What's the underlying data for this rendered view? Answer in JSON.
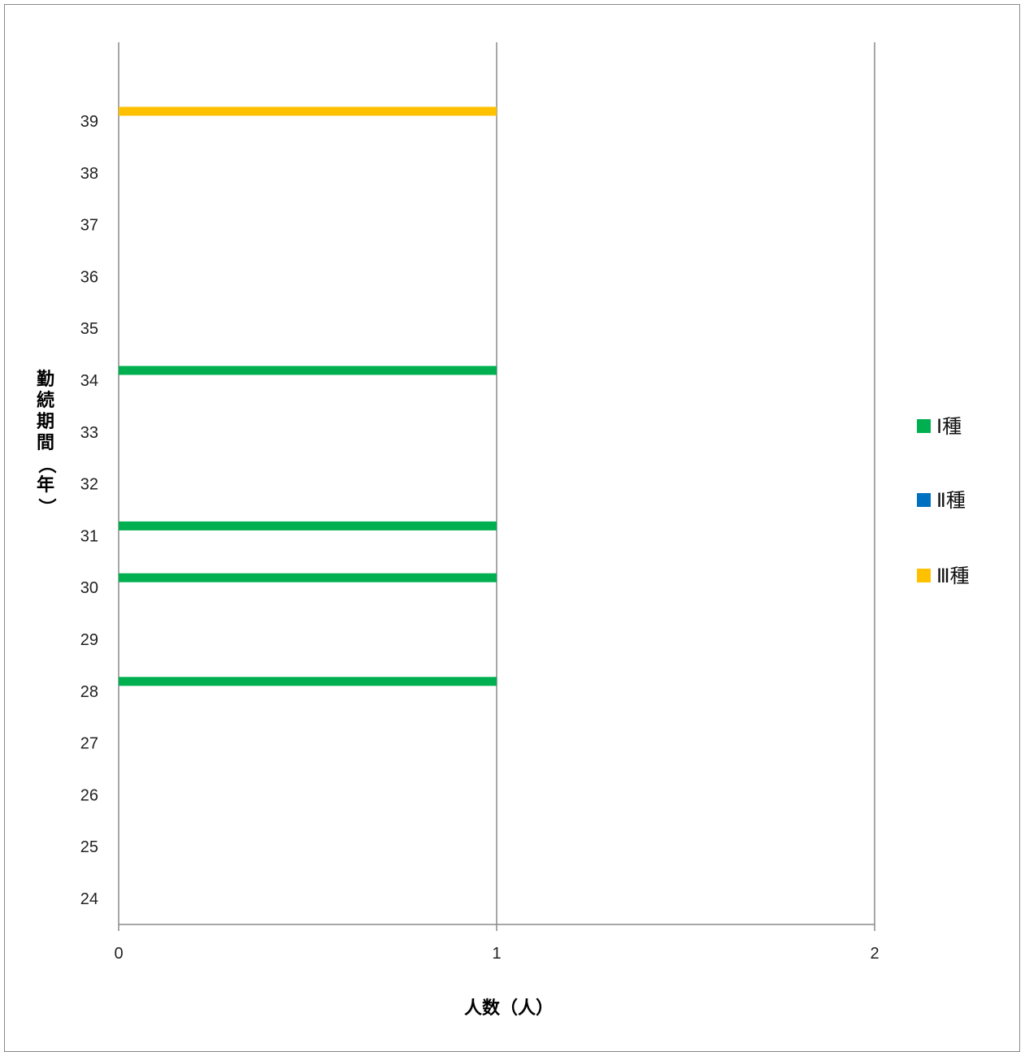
{
  "chart_data": {
    "type": "bar",
    "orientation": "horizontal",
    "title": "",
    "xlabel": "人数（人）",
    "ylabel": "勤続期間（年）",
    "xlim": [
      0,
      2
    ],
    "x_ticks": [
      "0",
      "1",
      "2"
    ],
    "categories": [
      "24",
      "25",
      "26",
      "27",
      "28",
      "29",
      "30",
      "31",
      "32",
      "33",
      "34",
      "35",
      "36",
      "37",
      "38",
      "39"
    ],
    "series": [
      {
        "name": "Ⅰ種",
        "color": "#00b050",
        "values": [
          0,
          0,
          0,
          0,
          1,
          0,
          1,
          1,
          0,
          0,
          1,
          0,
          0,
          0,
          0,
          0
        ]
      },
      {
        "name": "Ⅱ種",
        "color": "#0070c0",
        "values": [
          0,
          0,
          0,
          0,
          0,
          0,
          0,
          0,
          0,
          0,
          0,
          0,
          0,
          0,
          0,
          0
        ]
      },
      {
        "name": "Ⅲ種",
        "color": "#ffc000",
        "values": [
          0,
          0,
          0,
          0,
          0,
          0,
          0,
          0,
          0,
          0,
          0,
          0,
          0,
          0,
          0,
          1
        ]
      }
    ],
    "grid": "vertical",
    "legend_position": "right"
  }
}
